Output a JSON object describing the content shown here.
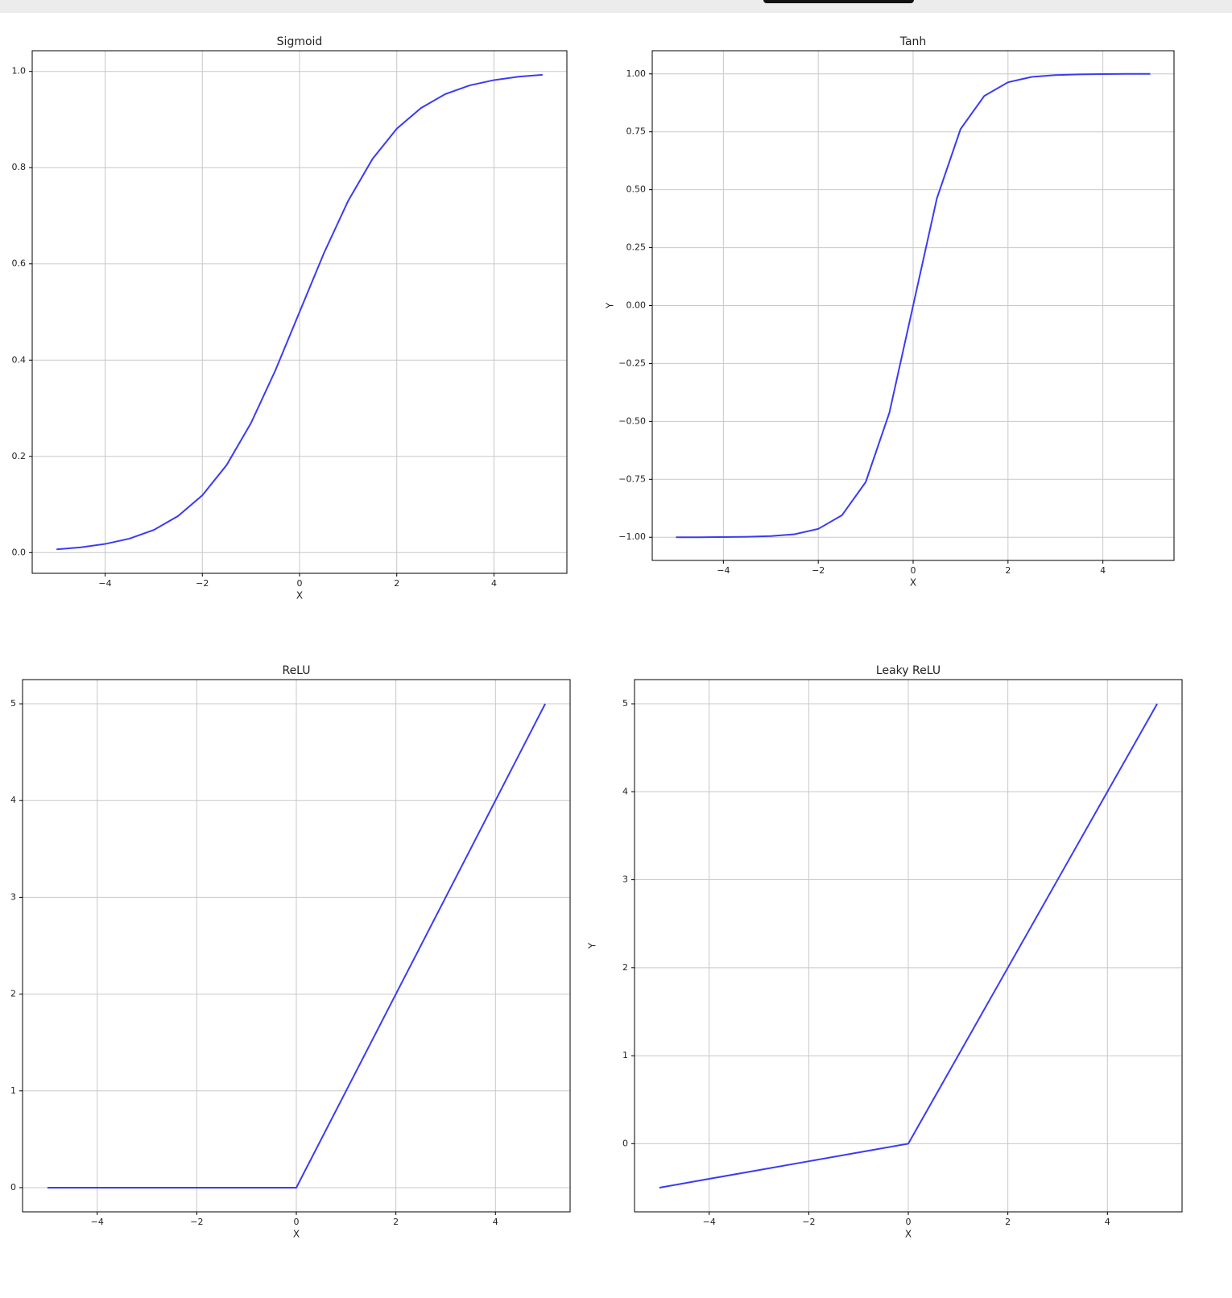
{
  "chart_data": [
    {
      "type": "line",
      "title": "Sigmoid",
      "xlabel": "X",
      "x": [
        -5,
        -4.5,
        -4,
        -3.5,
        -3,
        -2.5,
        -2,
        -1.5,
        -1,
        -0.5,
        0,
        0.5,
        1,
        1.5,
        2,
        2.5,
        3,
        3.5,
        4,
        4.5,
        5
      ],
      "values": [
        0.0067,
        0.011,
        0.018,
        0.029,
        0.047,
        0.076,
        0.119,
        0.182,
        0.269,
        0.378,
        0.5,
        0.622,
        0.731,
        0.818,
        0.881,
        0.924,
        0.953,
        0.971,
        0.982,
        0.989,
        0.993
      ],
      "color": "#3b3bf5",
      "grid": true,
      "xlim": [
        -5.5,
        5.5
      ],
      "ylim": [
        -0.043,
        1.043
      ],
      "xticks": [
        {
          "value": -4,
          "label": "−4"
        },
        {
          "value": -2,
          "label": "−2"
        },
        0,
        2,
        4
      ],
      "yticks": [
        {
          "value": 0,
          "label": "0.0"
        },
        0.2,
        0.4,
        0.6,
        0.8,
        {
          "value": 1,
          "label": "1.0"
        }
      ]
    },
    {
      "type": "line",
      "title": "Tanh",
      "xlabel": "X",
      "ylabel": "Y",
      "x": [
        -5,
        -4.5,
        -4,
        -3.5,
        -3,
        -2.5,
        -2,
        -1.5,
        -1,
        -0.5,
        0,
        0.5,
        1,
        1.5,
        2,
        2.5,
        3,
        3.5,
        4,
        4.5,
        5
      ],
      "values": [
        -1.0,
        -1.0,
        -0.999,
        -0.998,
        -0.995,
        -0.987,
        -0.964,
        -0.905,
        -0.762,
        -0.462,
        0,
        0.462,
        0.762,
        0.905,
        0.964,
        0.987,
        0.995,
        0.998,
        0.999,
        1.0,
        1.0
      ],
      "color": "#3b3bf5",
      "grid": true,
      "xlim": [
        -5.5,
        5.5
      ],
      "ylim": [
        -1.1,
        1.1
      ],
      "xticks": [
        {
          "value": -4,
          "label": "−4"
        },
        {
          "value": -2,
          "label": "−2"
        },
        0,
        2,
        4
      ],
      "yticks": [
        {
          "value": -1,
          "label": "−1.00"
        },
        {
          "value": -0.75,
          "label": "−0.75"
        },
        {
          "value": -0.5,
          "label": "−0.50"
        },
        {
          "value": -0.25,
          "label": "−0.25"
        },
        {
          "value": 0,
          "label": "0.00"
        },
        0.25,
        {
          "value": 0.5,
          "label": "0.50"
        },
        0.75,
        {
          "value": 1,
          "label": "1.00"
        }
      ]
    },
    {
      "type": "line",
      "title": "ReLU",
      "xlabel": "X",
      "x": [
        -5,
        -4,
        -3,
        -2,
        -1,
        0,
        1,
        2,
        3,
        4,
        5
      ],
      "values": [
        0,
        0,
        0,
        0,
        0,
        0,
        1,
        2,
        3,
        4,
        5
      ],
      "color": "#3b3bf5",
      "grid": true,
      "xlim": [
        -5.5,
        5.5
      ],
      "ylim": [
        -0.25,
        5.25
      ],
      "xticks": [
        {
          "value": -4,
          "label": "−4"
        },
        {
          "value": -2,
          "label": "−2"
        },
        0,
        2,
        4
      ],
      "yticks": [
        0,
        1,
        2,
        3,
        4,
        5
      ]
    },
    {
      "type": "line",
      "title": "Leaky ReLU",
      "xlabel": "X",
      "ylabel": "Y",
      "x": [
        -5,
        -4,
        -3,
        -2,
        -1,
        0,
        1,
        2,
        3,
        4,
        5
      ],
      "values": [
        -0.5,
        -0.4,
        -0.3,
        -0.2,
        -0.1,
        0,
        1,
        2,
        3,
        4,
        5
      ],
      "color": "#3b3bf5",
      "grid": true,
      "xlim": [
        -5.5,
        5.5
      ],
      "ylim": [
        -0.775,
        5.275
      ],
      "xticks": [
        {
          "value": -4,
          "label": "−4"
        },
        {
          "value": -2,
          "label": "−2"
        },
        0,
        2,
        4
      ],
      "yticks": [
        0,
        1,
        2,
        3,
        4,
        5
      ]
    }
  ]
}
